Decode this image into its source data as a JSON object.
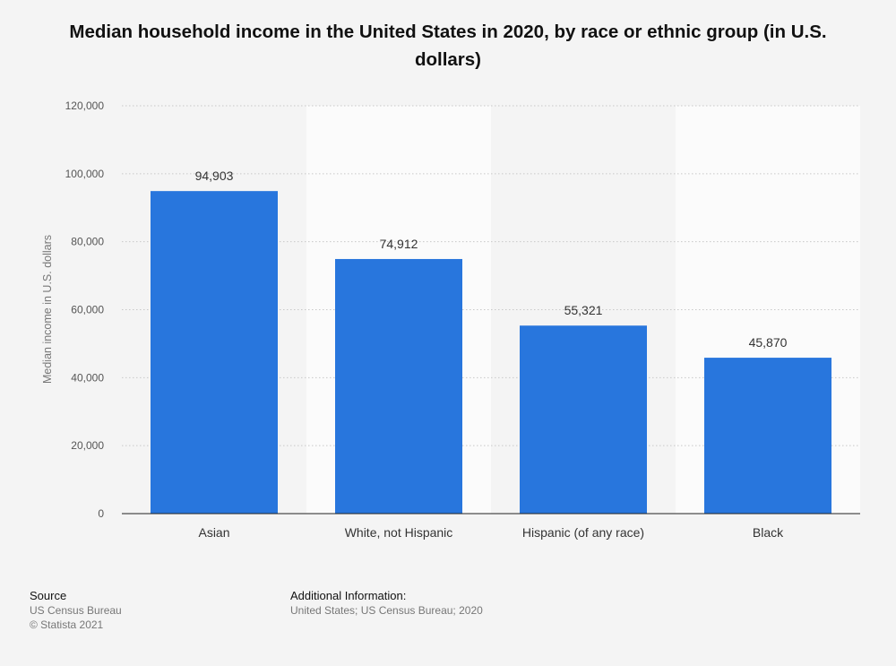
{
  "chart_data": {
    "type": "bar",
    "title": "Median household income in the United States in 2020, by race or ethnic group (in U.S. dollars)",
    "xlabel": "",
    "ylabel": "Median income in U.S. dollars",
    "categories": [
      "Asian",
      "White, not Hispanic",
      "Hispanic (of any race)",
      "Black"
    ],
    "values": [
      94903,
      74912,
      55321,
      45870
    ],
    "value_labels": [
      "94,903",
      "74,912",
      "55,321",
      "45,870"
    ],
    "ylim": [
      0,
      120000
    ],
    "yticks": [
      0,
      20000,
      40000,
      60000,
      80000,
      100000,
      120000
    ],
    "ytick_labels": [
      "0",
      "20,000",
      "40,000",
      "60,000",
      "80,000",
      "100,000",
      "120,000"
    ],
    "grid": true,
    "bar_color": "#2876dd"
  },
  "footer": {
    "source_heading": "Source",
    "source_lines": [
      "US Census Bureau",
      "© Statista 2021"
    ],
    "additional_heading": "Additional Information:",
    "additional_text": "United States; US Census Bureau; 2020"
  }
}
